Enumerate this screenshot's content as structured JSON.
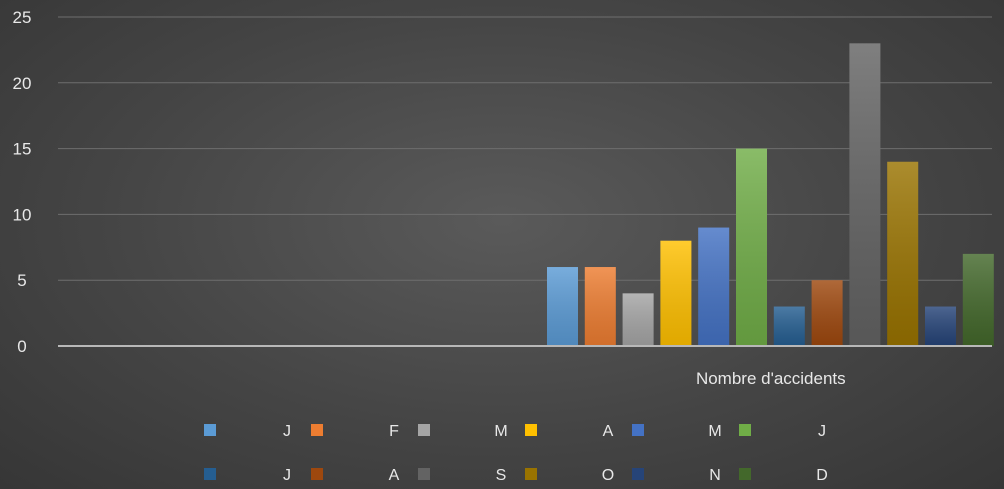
{
  "chart_data": {
    "type": "bar",
    "categories": [
      "Nombre d'accidents"
    ],
    "series": [
      {
        "name": "J",
        "values": [
          6
        ],
        "color": "#5b9bd5"
      },
      {
        "name": "F",
        "values": [
          6
        ],
        "color": "#ed7d31"
      },
      {
        "name": "M",
        "values": [
          4
        ],
        "color": "#a5a5a5"
      },
      {
        "name": "A",
        "values": [
          8
        ],
        "color": "#ffc000"
      },
      {
        "name": "M",
        "values": [
          9
        ],
        "color": "#4472c4"
      },
      {
        "name": "J",
        "values": [
          15
        ],
        "color": "#70ad47"
      },
      {
        "name": "J",
        "values": [
          3
        ],
        "color": "#255e91"
      },
      {
        "name": "A",
        "values": [
          5
        ],
        "color": "#9e480e"
      },
      {
        "name": "S",
        "values": [
          23
        ],
        "color": "#636363"
      },
      {
        "name": "O",
        "values": [
          14
        ],
        "color": "#997300"
      },
      {
        "name": "N",
        "values": [
          3
        ],
        "color": "#264478"
      },
      {
        "name": "D",
        "values": [
          7
        ],
        "color": "#43682b"
      }
    ],
    "yticks": [
      "0",
      "5",
      "10",
      "15",
      "20",
      "25"
    ],
    "ylim": [
      0,
      25
    ],
    "grid": true,
    "legend_position": "bottom",
    "legend_rows": [
      [
        {
          "series": 0,
          "label": "J"
        },
        {
          "series": 1,
          "label": "F"
        },
        {
          "series": 2,
          "label": "M"
        },
        {
          "series": 3,
          "label": "A"
        },
        {
          "series": 4,
          "label": "M"
        },
        {
          "series": 5,
          "label": "J"
        }
      ],
      [
        {
          "series": 6,
          "label": "J"
        },
        {
          "series": 7,
          "label": "A"
        },
        {
          "series": 8,
          "label": "S"
        },
        {
          "series": 9,
          "label": "O"
        },
        {
          "series": 10,
          "label": "N"
        },
        {
          "series": 11,
          "label": "D"
        }
      ]
    ]
  }
}
